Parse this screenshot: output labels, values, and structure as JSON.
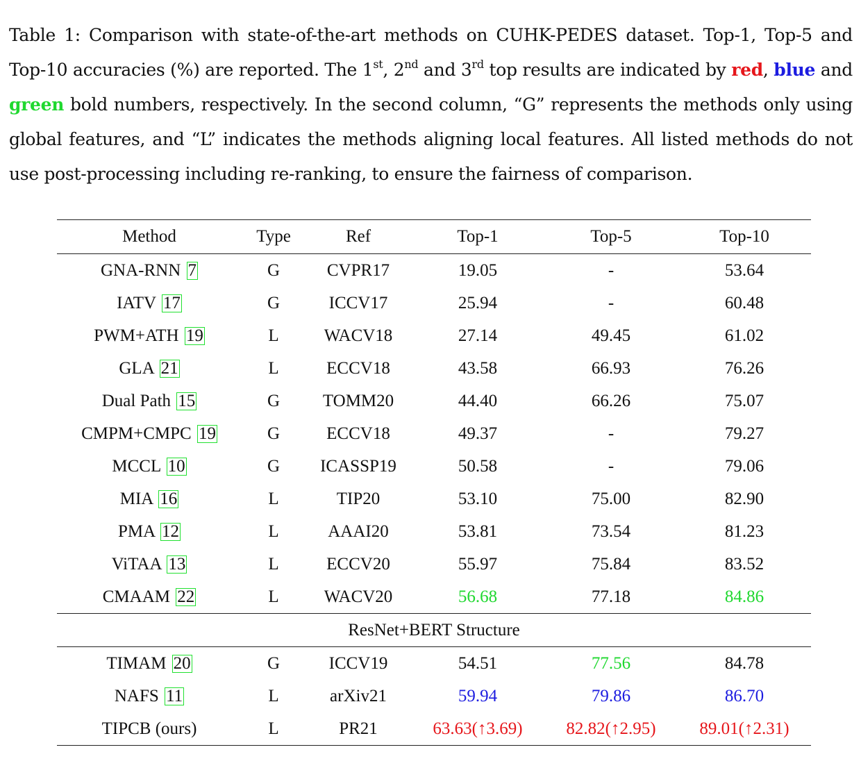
{
  "caption": {
    "seg1": "Table 1: Comparison with state-of-the-art methods on CUHK-PEDES dataset. Top-1, Top-5 and Top-10 accuracies (%) are reported. The 1",
    "sup1": "st",
    "seg2": ", 2",
    "sup2": "nd",
    "seg3": " and 3",
    "sup3": "rd",
    "seg4": " top results are indicated by ",
    "red_word": "red",
    "seg5": ", ",
    "blue_word": "blue",
    "seg6": " and ",
    "green_word": "green",
    "seg7": " bold numbers, respectively. In the second column, “G” represents the methods only using global features, and “L” indicates the methods aligning local features. All listed methods do not use post-processing including re-ranking, to ensure the fairness of comparison."
  },
  "colors": {
    "first": "#e6161b",
    "second": "#1c1ce0",
    "third": "#20d830",
    "link_box": "#21e030"
  },
  "table": {
    "headers": [
      "Method",
      "Type",
      "Ref",
      "Top-1",
      "Top-5",
      "Top-10"
    ],
    "rows": [
      {
        "method": "GNA-RNN",
        "cite": "7",
        "type": "G",
        "ref": "CVPR17",
        "top1": "19.05",
        "top5": "-",
        "top10": "53.64"
      },
      {
        "method": "IATV",
        "cite": "17",
        "type": "G",
        "ref": "ICCV17",
        "top1": "25.94",
        "top5": "-",
        "top10": "60.48"
      },
      {
        "method": "PWM+ATH",
        "cite": "19",
        "type": "L",
        "ref": "WACV18",
        "top1": "27.14",
        "top5": "49.45",
        "top10": "61.02"
      },
      {
        "method": "GLA",
        "cite": "21",
        "type": "L",
        "ref": "ECCV18",
        "top1": "43.58",
        "top5": "66.93",
        "top10": "76.26"
      },
      {
        "method": "Dual Path",
        "cite": "15",
        "type": "G",
        "ref": "TOMM20",
        "top1": "44.40",
        "top5": "66.26",
        "top10": "75.07"
      },
      {
        "method": "CMPM+CMPC",
        "cite": "19",
        "type": "G",
        "ref": "ECCV18",
        "top1": "49.37",
        "top5": "-",
        "top10": "79.27"
      },
      {
        "method": "MCCL",
        "cite": "10",
        "type": "G",
        "ref": "ICASSP19",
        "top1": "50.58",
        "top5": "-",
        "top10": "79.06"
      },
      {
        "method": "MIA",
        "cite": "16",
        "type": "L",
        "ref": "TIP20",
        "top1": "53.10",
        "top5": "75.00",
        "top10": "82.90"
      },
      {
        "method": "PMA",
        "cite": "12",
        "type": "L",
        "ref": "AAAI20",
        "top1": "53.81",
        "top5": "73.54",
        "top10": "81.23"
      },
      {
        "method": "ViTAA",
        "cite": "13",
        "type": "L",
        "ref": "ECCV20",
        "top1": "55.97",
        "top5": "75.84",
        "top10": "83.52"
      },
      {
        "method": "CMAAM",
        "cite": "22",
        "type": "L",
        "ref": "WACV20",
        "top1": "56.68",
        "top5": "77.18",
        "top10": "84.86"
      }
    ],
    "section_label": "ResNet+BERT Structure",
    "rows2": [
      {
        "method": "TIMAM",
        "cite": "20",
        "type": "G",
        "ref": "ICCV19",
        "top1": "54.51",
        "top5": "77.56",
        "top10": "84.78"
      },
      {
        "method": "NAFS",
        "cite": "11",
        "type": "L",
        "ref": "arXiv21",
        "top1": "59.94",
        "top5": "79.86",
        "top10": "86.70"
      },
      {
        "method": "TIPCB (ours)",
        "cite": "",
        "type": "L",
        "ref": "PR21",
        "top1": "63.63(↑3.69)",
        "top5": "82.82(↑2.95)",
        "top10": "89.01(↑2.31)"
      }
    ]
  }
}
